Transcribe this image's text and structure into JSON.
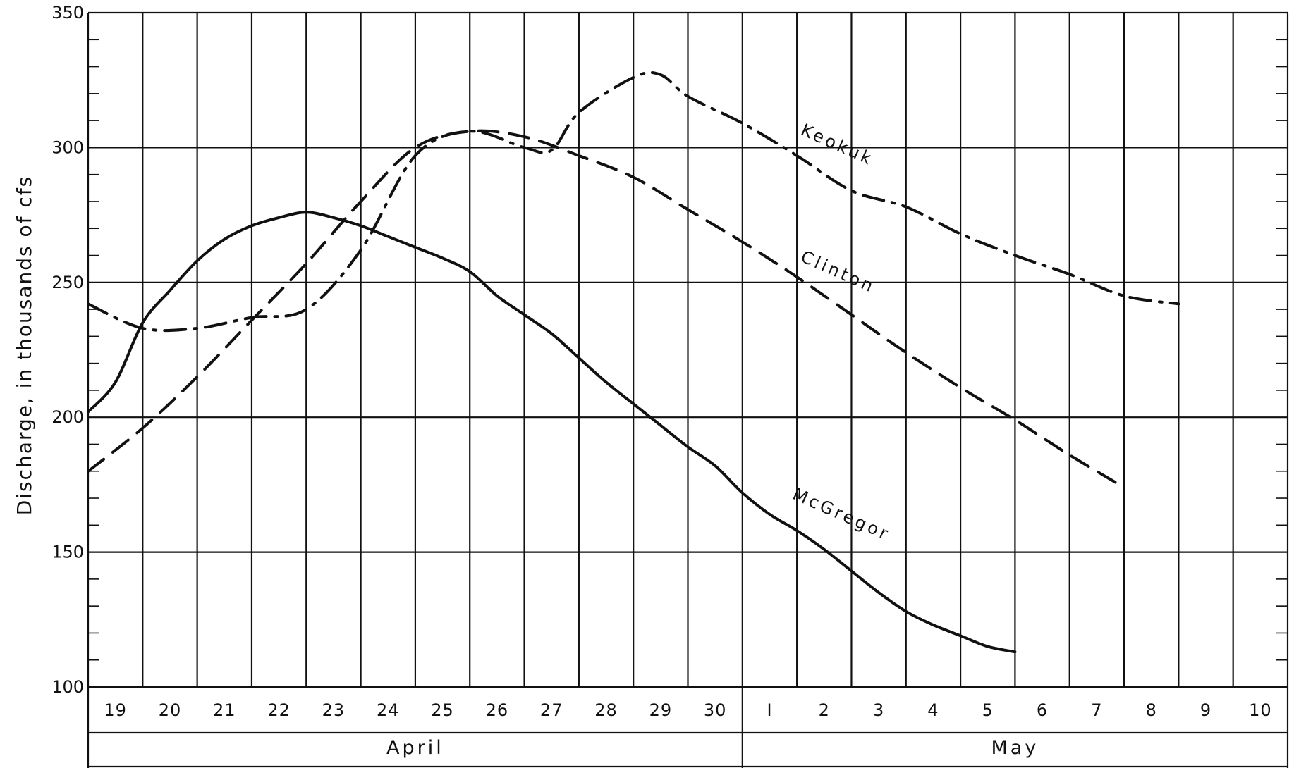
{
  "chart_data": {
    "type": "line",
    "title": "",
    "ylabel": "Discharge, in thousands of cfs",
    "xlabel": "",
    "ylim": [
      100,
      350
    ],
    "yticks": [
      100,
      150,
      200,
      250,
      300,
      350
    ],
    "grid": true,
    "x_day_labels": [
      "19",
      "20",
      "21",
      "22",
      "23",
      "24",
      "25",
      "26",
      "27",
      "28",
      "29",
      "30",
      "I",
      "2",
      "3",
      "4",
      "5",
      "6",
      "7",
      "8",
      "9",
      "10"
    ],
    "months": [
      {
        "label": "April",
        "first_index": 0,
        "last_index": 11
      },
      {
        "label": "May",
        "first_index": 12,
        "last_index": 21
      }
    ],
    "x_range": [
      0,
      22
    ],
    "series": [
      {
        "name": "McGregor",
        "style": "solid",
        "points": [
          [
            0,
            202
          ],
          [
            0.5,
            213
          ],
          [
            1,
            235
          ],
          [
            1.5,
            247
          ],
          [
            2,
            258
          ],
          [
            2.5,
            266
          ],
          [
            3,
            271
          ],
          [
            3.5,
            274
          ],
          [
            4,
            276
          ],
          [
            4.5,
            274
          ],
          [
            5,
            271
          ],
          [
            5.5,
            267
          ],
          [
            6,
            263
          ],
          [
            6.5,
            259
          ],
          [
            7,
            254
          ],
          [
            7.5,
            245
          ],
          [
            8,
            238
          ],
          [
            8.5,
            231
          ],
          [
            9,
            222
          ],
          [
            9.5,
            213
          ],
          [
            10,
            205
          ],
          [
            10.5,
            197
          ],
          [
            11,
            189
          ],
          [
            11.5,
            182
          ],
          [
            12,
            172
          ],
          [
            12.5,
            164
          ],
          [
            13,
            158
          ],
          [
            13.5,
            151
          ],
          [
            14,
            143
          ],
          [
            14.5,
            135
          ],
          [
            15,
            128
          ],
          [
            15.5,
            123
          ],
          [
            16,
            119
          ],
          [
            16.5,
            115
          ],
          [
            17,
            113
          ]
        ]
      },
      {
        "name": "Clinton",
        "style": "dashed",
        "points": [
          [
            0,
            180
          ],
          [
            1,
            196
          ],
          [
            2,
            215
          ],
          [
            3,
            236
          ],
          [
            4,
            257
          ],
          [
            5,
            280
          ],
          [
            6,
            300
          ],
          [
            7,
            306
          ],
          [
            8,
            304
          ],
          [
            9,
            297
          ],
          [
            10,
            289
          ],
          [
            11,
            277
          ],
          [
            12,
            265
          ],
          [
            13,
            252
          ],
          [
            14,
            238
          ],
          [
            15,
            224
          ],
          [
            16,
            211
          ],
          [
            17,
            199
          ],
          [
            18,
            186
          ],
          [
            19,
            174
          ]
        ]
      },
      {
        "name": "Keokuk",
        "style": "dashdot",
        "points": [
          [
            0,
            242
          ],
          [
            1,
            233
          ],
          [
            2,
            233
          ],
          [
            3,
            237
          ],
          [
            4,
            240
          ],
          [
            5,
            262
          ],
          [
            6,
            297
          ],
          [
            7,
            306
          ],
          [
            8,
            300
          ],
          [
            8.5,
            299
          ],
          [
            9,
            313
          ],
          [
            10,
            326
          ],
          [
            10.5,
            327
          ],
          [
            11,
            319
          ],
          [
            12,
            309
          ],
          [
            13,
            297
          ],
          [
            14,
            284
          ],
          [
            15,
            278
          ],
          [
            16,
            268
          ],
          [
            17,
            260
          ],
          [
            18,
            253
          ],
          [
            19,
            245
          ],
          [
            20,
            242
          ]
        ]
      }
    ],
    "annotations": [
      "Keokuk",
      "Clinton",
      "McGregor"
    ]
  }
}
